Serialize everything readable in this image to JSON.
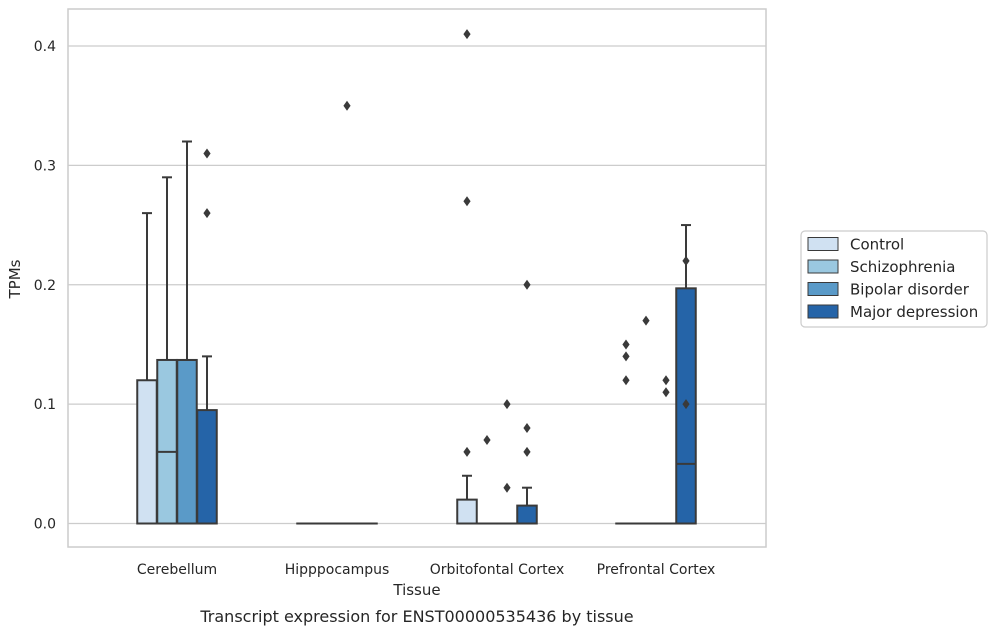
{
  "caption": "Transcript expression for ENST00000535436 by tissue",
  "chart_data": {
    "type": "box",
    "title": "",
    "xlabel": "Tissue",
    "ylabel": "TPMs",
    "ylim": [
      -0.02,
      0.43
    ],
    "yticks": [
      0.0,
      0.1,
      0.2,
      0.3,
      0.4
    ],
    "ytick_labels": [
      "0.0",
      "0.1",
      "0.2",
      "0.3",
      "0.4"
    ],
    "grid": "horizontal",
    "legend_position": "right",
    "categories": [
      "Cerebellum",
      "Hipppocampus",
      "Orbitofontal Cortex",
      "Prefrontal Cortex"
    ],
    "series": [
      {
        "name": "Control",
        "color": "#d0e1f2",
        "boxes": [
          {
            "q1": 0.0,
            "median": 0.0,
            "q3": 0.12,
            "whisker_low": 0.0,
            "whisker_high": 0.26,
            "outliers": []
          },
          {
            "q1": 0.0,
            "median": 0.0,
            "q3": 0.0,
            "whisker_low": 0.0,
            "whisker_high": 0.0,
            "outliers": []
          },
          {
            "q1": 0.0,
            "median": 0.0,
            "q3": 0.02,
            "whisker_low": 0.0,
            "whisker_high": 0.04,
            "outliers": [
              0.06,
              0.27,
              0.41
            ]
          },
          {
            "q1": 0.0,
            "median": 0.0,
            "q3": 0.0,
            "whisker_low": 0.0,
            "whisker_high": 0.0,
            "outliers": [
              0.12,
              0.14,
              0.15
            ]
          }
        ]
      },
      {
        "name": "Schizophrenia",
        "color": "#9ac8e0",
        "boxes": [
          {
            "q1": 0.0,
            "median": 0.06,
            "q3": 0.137,
            "whisker_low": 0.0,
            "whisker_high": 0.29,
            "outliers": []
          },
          {
            "q1": 0.0,
            "median": 0.0,
            "q3": 0.0,
            "whisker_low": 0.0,
            "whisker_high": 0.0,
            "outliers": []
          },
          {
            "q1": 0.0,
            "median": 0.0,
            "q3": 0.0,
            "whisker_low": 0.0,
            "whisker_high": 0.0,
            "outliers": [
              0.07
            ]
          },
          {
            "q1": 0.0,
            "median": 0.0,
            "q3": 0.0,
            "whisker_low": 0.0,
            "whisker_high": 0.0,
            "outliers": [
              0.17
            ]
          }
        ]
      },
      {
        "name": "Bipolar disorder",
        "color": "#5a9ac8",
        "boxes": [
          {
            "q1": 0.0,
            "median": 0.137,
            "q3": 0.137,
            "whisker_low": 0.0,
            "whisker_high": 0.32,
            "outliers": []
          },
          {
            "q1": 0.0,
            "median": 0.0,
            "q3": 0.0,
            "whisker_low": 0.0,
            "whisker_high": 0.0,
            "outliers": [
              0.35
            ]
          },
          {
            "q1": 0.0,
            "median": 0.0,
            "q3": 0.0,
            "whisker_low": 0.0,
            "whisker_high": 0.0,
            "outliers": [
              0.03,
              0.1
            ]
          },
          {
            "q1": 0.0,
            "median": 0.0,
            "q3": 0.0,
            "whisker_low": 0.0,
            "whisker_high": 0.0,
            "outliers": [
              0.11,
              0.12
            ]
          }
        ]
      },
      {
        "name": "Major depression",
        "color": "#2564a8",
        "boxes": [
          {
            "q1": 0.0,
            "median": 0.0,
            "q3": 0.095,
            "whisker_low": 0.0,
            "whisker_high": 0.14,
            "outliers": [
              0.26,
              0.31
            ]
          },
          {
            "q1": 0.0,
            "median": 0.0,
            "q3": 0.0,
            "whisker_low": 0.0,
            "whisker_high": 0.0,
            "outliers": []
          },
          {
            "q1": 0.0,
            "median": 0.0,
            "q3": 0.015,
            "whisker_low": 0.0,
            "whisker_high": 0.03,
            "outliers": [
              0.06,
              0.08,
              0.2
            ]
          },
          {
            "q1": 0.0,
            "median": 0.05,
            "q3": 0.197,
            "whisker_low": 0.0,
            "whisker_high": 0.25,
            "outliers": [
              0.1,
              0.22
            ]
          }
        ]
      }
    ]
  }
}
